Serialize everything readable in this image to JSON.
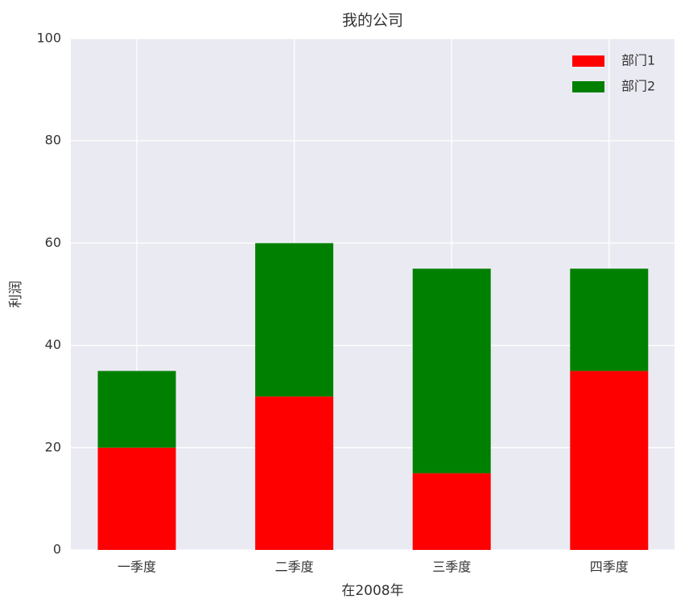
{
  "chart_data": {
    "type": "bar",
    "stacked": true,
    "title": "我的公司",
    "x_label": "在2008年",
    "y_label": "利润",
    "categories": [
      "一季度",
      "二季度",
      "三季度",
      "四季度"
    ],
    "series": [
      {
        "name": "部门1",
        "color": "#ff0000",
        "values": [
          20,
          30,
          15,
          35
        ]
      },
      {
        "name": "部门2",
        "color": "#008000",
        "values": [
          15,
          30,
          40,
          20
        ]
      }
    ],
    "ylim": [
      0,
      100
    ],
    "yticks": [
      0,
      20,
      40,
      60,
      80,
      100
    ],
    "grid": true,
    "legend": "upper right"
  }
}
